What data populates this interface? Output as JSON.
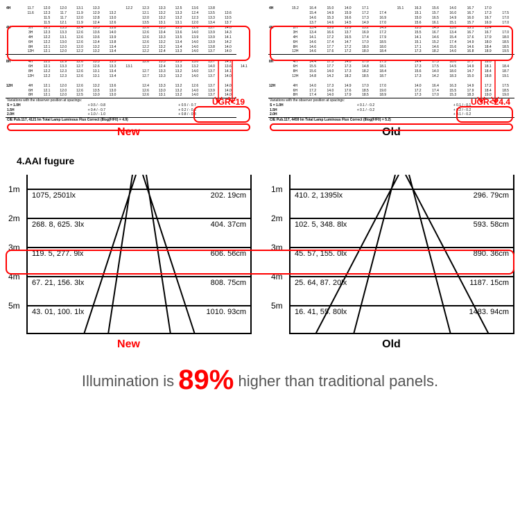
{
  "top": {
    "new": {
      "label": "New",
      "ugr_text": "UGR<19",
      "rows_above": [
        [
          "4H",
          "11.7",
          "12.0",
          "12.0",
          "13.1",
          "13.3",
          "",
          "12.2",
          "12.3",
          "13.3",
          "12.5",
          "13.6",
          "13.8"
        ],
        [
          "",
          "11.6",
          "12.3",
          "11.7",
          "11.9",
          "12.9",
          "13.2",
          "",
          "12.1",
          "13.2",
          "13.3",
          "12.4",
          "13.5",
          "13.6"
        ],
        [
          "",
          "",
          "11.5",
          "11.7",
          "12.0",
          "12.8",
          "13.0",
          "",
          "12.0",
          "13.2",
          "13.2",
          "12.3",
          "13.3",
          "13.5"
        ],
        [
          "",
          "",
          "11.5",
          "12.1",
          "11.9",
          "12.4",
          "12.6",
          "",
          "13.5",
          "13.1",
          "13.1",
          "12.0",
          "13.4",
          "13.7"
        ]
      ],
      "rows_box": [
        [
          "4H",
          "2H",
          "12.1",
          "13.3",
          "12.4",
          "13.5",
          "13.8",
          "",
          "12.6",
          "13.3",
          "13.5",
          "12.6",
          "13.7",
          "14.0"
        ],
        [
          "",
          "3H",
          "12.3",
          "13.3",
          "12.6",
          "13.6",
          "14.0",
          "",
          "12.6",
          "13.4",
          "13.6",
          "14.0",
          "13.9",
          "14.3"
        ],
        [
          "",
          "4H",
          "12.2",
          "13.1",
          "12.6",
          "13.6",
          "13.9",
          "",
          "12.6",
          "13.3",
          "13.5",
          "13.9",
          "13.9",
          "14.1"
        ],
        [
          "",
          "6H",
          "12.2",
          "13.0",
          "12.6",
          "13.4",
          "13.8",
          "",
          "12.6",
          "13.2",
          "13.4",
          "14.0",
          "13.9",
          "14.2"
        ],
        [
          "",
          "8H",
          "12.1",
          "12.0",
          "12.0",
          "13.2",
          "13.4",
          "",
          "12.2",
          "13.2",
          "13.4",
          "14.0",
          "13.8",
          "14.0"
        ],
        [
          "",
          "12H",
          "12.1",
          "12.0",
          "12.2",
          "13.2",
          "13.4",
          "",
          "12.2",
          "12.4",
          "13.3",
          "14.0",
          "13.7",
          "14.0"
        ]
      ],
      "rows_8h": [
        [
          "8H",
          "4H",
          "12.2",
          "12.9",
          "12.6",
          "13.3",
          "13.5",
          "",
          "12.6",
          "13.3",
          "13.5",
          "13.0",
          "13.7",
          "14.1"
        ],
        [
          "",
          "6H",
          "12.1",
          "13.3",
          "12.7",
          "12.6",
          "13.3",
          "13.1",
          "",
          "12.4",
          "13.3",
          "13.2",
          "14.0",
          "13.6",
          "14.1"
        ],
        [
          "",
          "8H",
          "12.2",
          "12.3",
          "12.6",
          "13.1",
          "13.4",
          "",
          "12.7",
          "13.3",
          "13.2",
          "14.0",
          "13.7",
          "14.1"
        ],
        [
          "",
          "12H",
          "12.2",
          "12.3",
          "12.6",
          "13.1",
          "13.4",
          "",
          "12.7",
          "13.3",
          "13.2",
          "14.0",
          "13.7",
          "14.0"
        ]
      ],
      "rows_12h": [
        [
          "12H",
          "4H",
          "12.1",
          "12.0",
          "12.6",
          "13.2",
          "13.6",
          "",
          "12.4",
          "13.3",
          "13.2",
          "12.6",
          "13.7",
          "14.0"
        ],
        [
          "",
          "6H",
          "12.1",
          "12.0",
          "12.6",
          "13.5",
          "13.0",
          "",
          "12.6",
          "13.0",
          "13.2",
          "14.0",
          "13.9",
          "14.0"
        ],
        [
          "",
          "8H",
          "12.1",
          "12.0",
          "12.5",
          "13.0",
          "13.0",
          "",
          "12.6",
          "13.1",
          "13.2",
          "14.0",
          "13.7",
          "14.0"
        ]
      ],
      "variations_header": "Variations with the observer position at spacings:",
      "variations": [
        [
          "S = 1.0H",
          "+ 0.5 / - 0.8",
          "+ 0.5 / - 0.7"
        ],
        [
          "1.5H",
          "+ 0.4 / - 0.7",
          "+ 0.2 / - 0.6"
        ],
        [
          "2.0H",
          "+ 1.0 / - 1.0",
          "+ 0.8 / - 0.8"
        ]
      ],
      "cie": "CIE Pub.117,  4121 lm Total Lamp Luminous Flux Correct (8log(F/F0) = 4.9)"
    },
    "old": {
      "label": "Old",
      "ugr_text": "UGR<24.4",
      "rows_above": [
        [
          "4H",
          "15.2",
          "16.4",
          "15.0",
          "14.0",
          "17.1",
          "",
          "15.1",
          "16.3",
          "15.6",
          "14.0",
          "16.7",
          "17.0"
        ],
        [
          "",
          "",
          "15.4",
          "14.9",
          "15.9",
          "17.2",
          "17.4",
          "",
          "15.1",
          "15.7",
          "16.0",
          "16.7",
          "17.3",
          "17.5"
        ],
        [
          "",
          "",
          "14.6",
          "15.3",
          "16.6",
          "17.3",
          "16.9",
          "",
          "15.0",
          "16.5",
          "14.9",
          "16.0",
          "16.7",
          "17.0"
        ],
        [
          "",
          "",
          "13.7",
          "14.6",
          "14.5",
          "14.9",
          "17.0",
          "",
          "15.6",
          "16.1",
          "15.1",
          "15.7",
          "16.9",
          "17.0"
        ]
      ],
      "rows_box": [
        [
          "4H",
          "2H",
          "13.4",
          "15.0",
          "13.9",
          "15.2",
          "14.9",
          "",
          "13.5",
          "14.9",
          "13.0",
          "15.1",
          "15.4",
          ""
        ],
        [
          "",
          "3H",
          "13.4",
          "16.6",
          "13.7",
          "16.9",
          "17.2",
          "",
          "15.5",
          "16.7",
          "13.4",
          "16.7",
          "16.7",
          "17.0"
        ],
        [
          "",
          "4H",
          "14.1",
          "17.2",
          "16.5",
          "17.4",
          "17.9",
          "",
          "14.1",
          "14.6",
          "15.4",
          "17.6",
          "17.9",
          "18.0"
        ],
        [
          "",
          "6H",
          "14.6",
          "17.4",
          "14.7",
          "17.0",
          "18.5",
          "",
          "15.1",
          "15.2",
          "17.4",
          "14.9",
          "18.0",
          "18.5"
        ],
        [
          "",
          "8H",
          "14.6",
          "17.7",
          "17.2",
          "18.0",
          "18.0",
          "",
          "17.1",
          "14.6",
          "15.6",
          "14.6",
          "18.4",
          "18.5"
        ],
        [
          "",
          "12H",
          "14.6",
          "17.6",
          "17.2",
          "18.0",
          "18.4",
          "",
          "17.3",
          "18.2",
          "14.0",
          "16.8",
          "18.9",
          "19.5"
        ]
      ],
      "rows_8h": [
        [
          "8H",
          "4H",
          "14.4",
          "17.3",
          "14.0",
          "17.0",
          "17.3",
          "",
          "14.4",
          "17.3",
          "18.0",
          "17.7",
          "18.0",
          ""
        ],
        [
          "",
          "6H",
          "15.5",
          "17.7",
          "17.3",
          "14.8",
          "18.1",
          "",
          "17.3",
          "17.5",
          "14.5",
          "14.9",
          "18.1",
          "18.4"
        ],
        [
          "",
          "8H",
          "15.6",
          "14.0",
          "17.3",
          "18.2",
          "18.4",
          "",
          "15.6",
          "14.0",
          "18.0",
          "14.7",
          "18.4",
          "18.7"
        ],
        [
          "",
          "12H",
          "14.8",
          "14.2",
          "18.2",
          "18.5",
          "18.7",
          "",
          "17.3",
          "14.2",
          "18.3",
          "15.0",
          "18.8",
          "19.1"
        ]
      ],
      "rows_12h": [
        [
          "12H",
          "4H",
          "14.0",
          "17.3",
          "14.9",
          "17.0",
          "17.0",
          "",
          "14.0",
          "16.4",
          "16.3",
          "14.9",
          "17.2",
          "17.5"
        ],
        [
          "",
          "6H",
          "17.2",
          "14.0",
          "17.6",
          "18.5",
          "19.0",
          "",
          "17.2",
          "17.4",
          "15.5",
          "17.9",
          "18.4",
          "18.5"
        ],
        [
          "",
          "8H",
          "17.4",
          "14.0",
          "17.9",
          "18.5",
          "18.9",
          "",
          "17.3",
          "17.0",
          "15.3",
          "18.3",
          "19.0",
          "19.0"
        ]
      ],
      "variations_header": "Variations with the observer position at spacings:",
      "variations": [
        [
          "S = 1.0H",
          "+ 0.1 / - 0.2",
          "+ 0.1 / - 0.1"
        ],
        [
          "1.5H",
          "+ 0.1 / - 0.2",
          "+ 0.2 / - 0.2"
        ],
        [
          "2.0H",
          "",
          "+ 0.1 / - 0.2"
        ]
      ],
      "cie": "CIE Pub.117,  4459 lm Total Lamp Luminous Flux Correct (8log(F/F0) = 5.2)"
    }
  },
  "section_title": "4.AAI fugure",
  "aai": {
    "highlight_row_index": 2,
    "new": {
      "label": "New",
      "rows": [
        {
          "d": "1m",
          "lx": "1075, 2501lx",
          "cm": "202. 19cm"
        },
        {
          "d": "2m",
          "lx": "268. 8, 625. 3lx",
          "cm": "404. 37cm"
        },
        {
          "d": "3m",
          "lx": "119. 5, 277. 9lx",
          "cm": "606. 56cm"
        },
        {
          "d": "4m",
          "lx": "67. 21, 156. 3lx",
          "cm": "808. 75cm"
        },
        {
          "d": "5m",
          "lx": "43. 01, 100. 1lx",
          "cm": "1010. 93cm"
        }
      ]
    },
    "old": {
      "label": "Old",
      "rows": [
        {
          "d": "1m",
          "lx": "410. 2, 1395lx",
          "cm": "296. 79cm"
        },
        {
          "d": "2m",
          "lx": "102. 5, 348. 8lx",
          "cm": "593. 58cm"
        },
        {
          "d": "3m",
          "lx": "45. 57, 155. 0lx",
          "cm": "890. 36cm"
        },
        {
          "d": "4m",
          "lx": "25. 64, 87. 20lx",
          "cm": "1187. 15cm"
        },
        {
          "d": "5m",
          "lx": "16. 41, 55. 80lx",
          "cm": "1483. 94cm"
        }
      ]
    }
  },
  "bottom": {
    "pre": "Illumination is ",
    "pct": "89%",
    "post": " higher than traditional panels."
  },
  "colors": {
    "highlight": "#ff0000",
    "text_gray": "#666666"
  }
}
